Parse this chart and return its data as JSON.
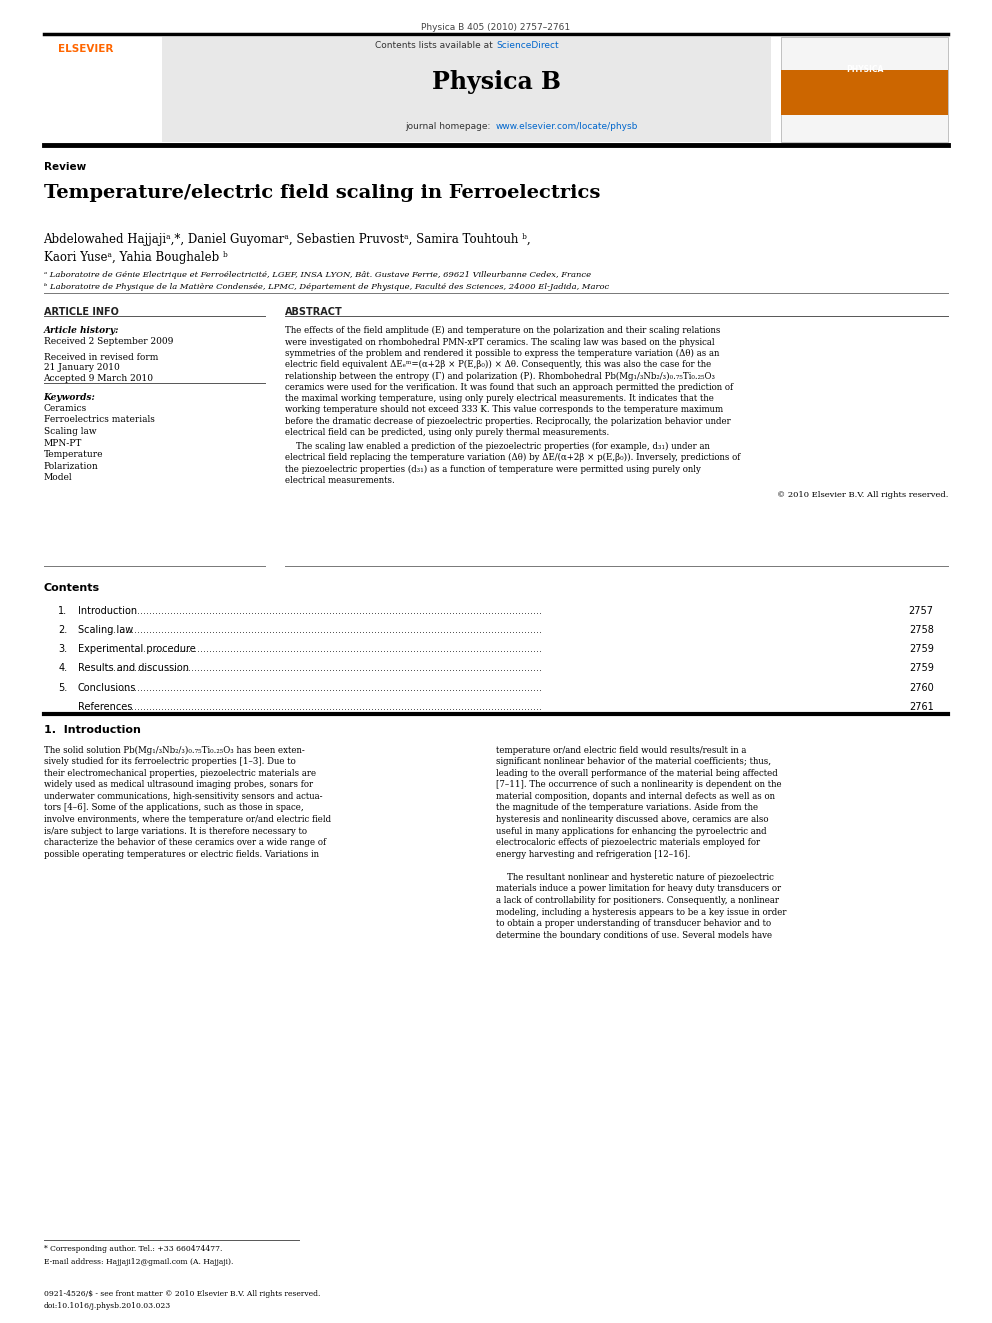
{
  "page_width": 9.92,
  "page_height": 13.23,
  "background_color": "#ffffff",
  "header_journal_ref": "Physica B 405 (2010) 2757–2761",
  "header_bg": "#e8e8e8",
  "journal_name": "Physica B",
  "contents_url": "Contents lists available at ScienceDirect",
  "journal_homepage": "journal homepage: www.elsevier.com/locate/physb",
  "section_label": "Review",
  "title": "Temperature/electric field scaling in Ferroelectrics",
  "authors_line1": "Abdelowahed Hajjajiᵃ,*, Daniel Guyomarᵃ, Sebastien Pruvostᵃ, Samira Touhtouh ᵇ,",
  "authors_line2": "Kaori Yuseᵃ, Yahia Boughaleb ᵇ",
  "affil_a": "ᵃ Laboratoire de Génie Electrique et Ferroélectricité, LGEF, INSA LYON, Bât. Gustave Ferrie, 69621 Villeurbanne Cedex, France",
  "affil_b": "ᵇ Laboratoire de Physique de la Matière Condensée, LPMC, Département de Physique, Faculté des Sciences, 24000 El-Jadida, Maroc",
  "article_info_header": "ARTICLE INFO",
  "abstract_header": "ABSTRACT",
  "article_history_label": "Article history:",
  "received": "Received 2 September 2009",
  "received_revised1": "Received in revised form",
  "received_revised2": "21 January 2010",
  "accepted": "Accepted 9 March 2010",
  "keywords_label": "Keywords:",
  "keywords": [
    "Ceramics",
    "Ferroelectrics materials",
    "Scaling law",
    "MPN-PT",
    "Temperature",
    "Polarization",
    "Model"
  ],
  "copyright": "© 2010 Elsevier B.V. All rights reserved.",
  "contents_header": "Contents",
  "contents_items": [
    [
      "1.",
      "Introduction",
      "2757"
    ],
    [
      "2.",
      "Scaling law",
      "2758"
    ],
    [
      "3.",
      "Experimental procedure",
      "2759"
    ],
    [
      "4.",
      "Results and discussion",
      "2759"
    ],
    [
      "5.",
      "Conclusions",
      "2760"
    ],
    [
      "",
      "References",
      "2761"
    ]
  ],
  "intro_header": "1.  Introduction",
  "abstract_lines1": [
    "The effects of the field amplitude (E) and temperature on the polarization and their scaling relations",
    "were investigated on rhombohedral PMN-xPT ceramics. The scaling law was based on the physical",
    "symmetries of the problem and rendered it possible to express the temperature variation (Δθ) as an",
    "electric field equivalent ΔEₑᵐ=(α+2β × P(E,β₀)) × Δθ. Consequently, this was also the case for the",
    "relationship between the entropy (Γ) and polarization (P). Rhombohedral Pb(Mg₁/₃Nb₂/₃)₀.₇₅Ti₀.₂₅O₃",
    "ceramics were used for the verification. It was found that such an approach permitted the prediction of",
    "the maximal working temperature, using only purely electrical measurements. It indicates that the",
    "working temperature should not exceed 333 K. This value corresponds to the temperature maximum",
    "before the dramatic decrease of piezoelectric properties. Reciprocally, the polarization behavior under",
    "electrical field can be predicted, using only purely thermal measurements."
  ],
  "abstract_lines2": [
    "    The scaling law enabled a prediction of the piezoelectric properties (for example, d₃₁) under an",
    "electrical field replacing the temperature variation (Δθ) by ΔE/(α+2β × p(E,β₀)). Inversely, predictions of",
    "the piezoelectric properties (d₃₁) as a function of temperature were permitted using purely only",
    "electrical measurements."
  ],
  "intro_col1_lines": [
    "The solid solution Pb(Mg₁/₃Nb₂/₃)₀.₇₅Ti₀.₂₅O₃ has been exten-",
    "sively studied for its ferroelectric properties [1–3]. Due to",
    "their electromechanical properties, piezoelectric materials are",
    "widely used as medical ultrasound imaging probes, sonars for",
    "underwater communications, high-sensitivity sensors and actua-",
    "tors [4–6]. Some of the applications, such as those in space,",
    "involve environments, where the temperature or/and electric field",
    "is/are subject to large variations. It is therefore necessary to",
    "characterize the behavior of these ceramics over a wide range of",
    "possible operating temperatures or electric fields. Variations in"
  ],
  "intro_col2_lines": [
    "temperature or/and electric field would results/result in a",
    "significant nonlinear behavior of the material coefficients; thus,",
    "leading to the overall performance of the material being affected",
    "[7–11]. The occurrence of such a nonlinearity is dependent on the",
    "material composition, dopants and internal defects as well as on",
    "the magnitude of the temperature variations. Aside from the",
    "hysteresis and nonlinearity discussed above, ceramics are also",
    "useful in many applications for enhancing the pyroelectric and",
    "electrocaloric effects of piezoelectric materials employed for",
    "energy harvesting and refrigeration [12–16].",
    "",
    "    The resultant nonlinear and hysteretic nature of piezoelectric",
    "materials induce a power limitation for heavy duty transducers or",
    "a lack of controllability for positioners. Consequently, a nonlinear",
    "modeling, including a hysteresis appears to be a key issue in order",
    "to obtain a proper understanding of transducer behavior and to",
    "determine the boundary conditions of use. Several models have"
  ],
  "footnote_corresp": "* Corresponding author. Tel.: +33 660474477.",
  "footnote_email": "E-mail address: Hajjaji12@gmail.com (A. Hajjaji).",
  "footnote_issn": "0921-4526/$ - see front matter © 2010 Elsevier B.V. All rights reserved.",
  "footnote_doi": "doi:10.1016/j.physb.2010.03.023",
  "elsevier_color": "#FF6600",
  "link_color": "#0066CC"
}
